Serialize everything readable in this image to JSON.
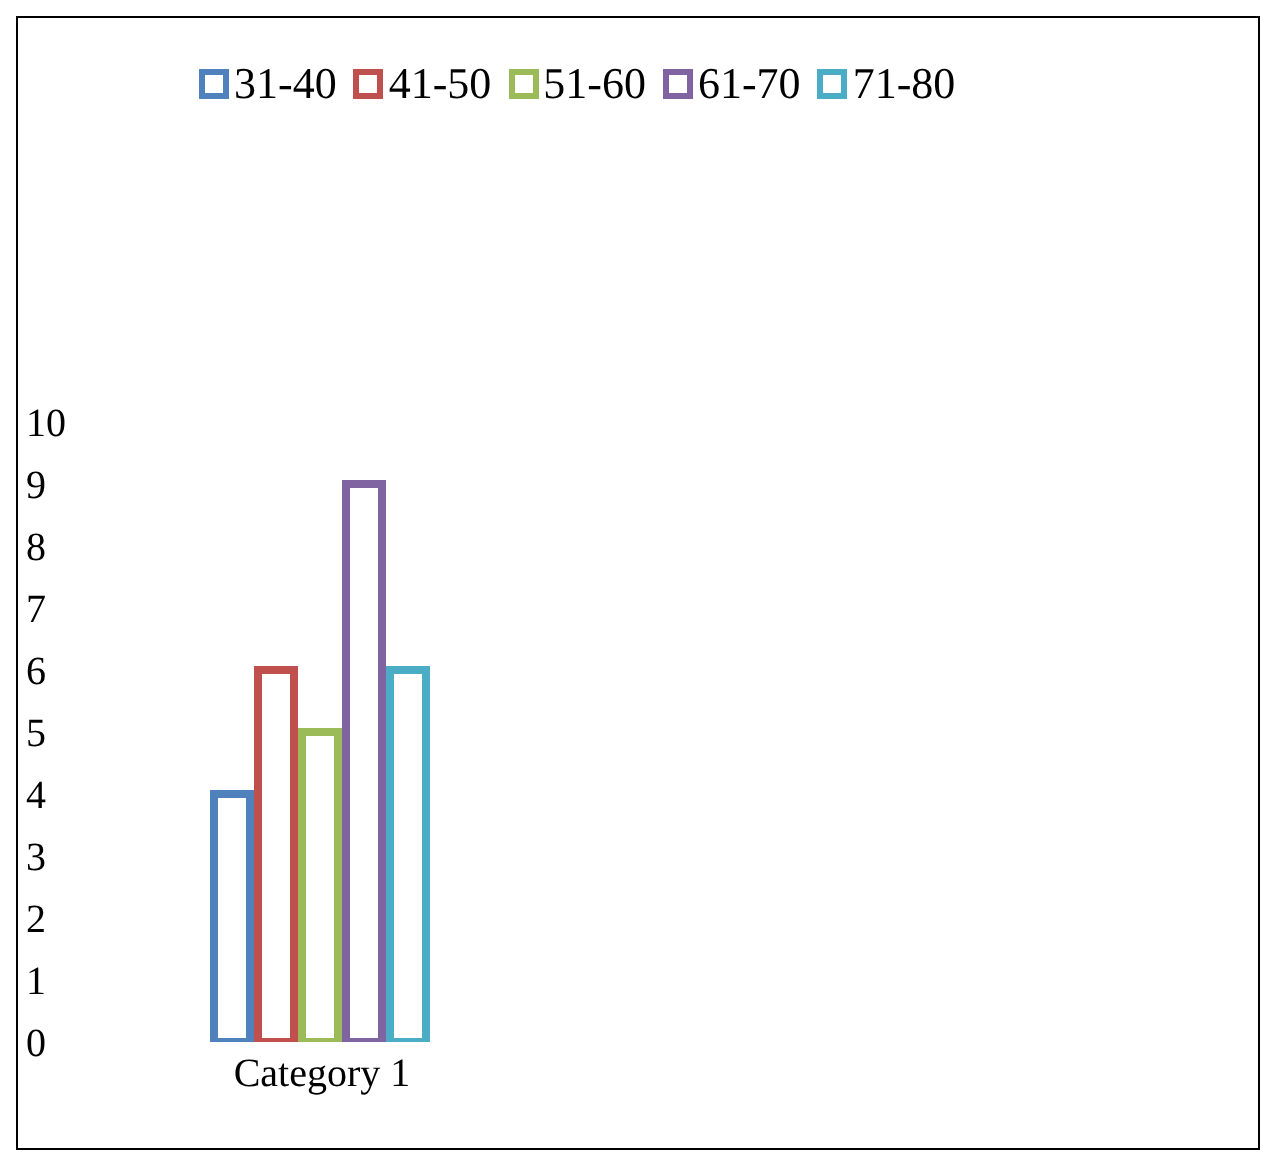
{
  "chart_data": {
    "type": "bar",
    "categories": [
      "Category 1"
    ],
    "series": [
      {
        "name": "31-40",
        "color": "#4f81bd",
        "values": [
          4
        ]
      },
      {
        "name": "41-50",
        "color": "#c0504d",
        "values": [
          6
        ]
      },
      {
        "name": "51-60",
        "color": "#9bbb59",
        "values": [
          5
        ]
      },
      {
        "name": "61-70",
        "color": "#8064a2",
        "values": [
          9
        ]
      },
      {
        "name": "71-80",
        "color": "#4bacc6",
        "values": [
          6
        ]
      }
    ],
    "ylim": [
      0,
      10
    ],
    "yticks": [
      0,
      1,
      2,
      3,
      4,
      5,
      6,
      7,
      8,
      9,
      10
    ],
    "grid": false,
    "legend": "top"
  }
}
